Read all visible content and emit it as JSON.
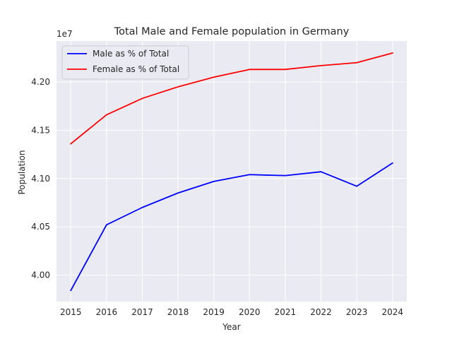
{
  "chart_data": {
    "type": "line",
    "title": "Total Male and Female population in Germany",
    "xlabel": "Year",
    "ylabel": "Population",
    "offset_label": "1e7",
    "x": [
      2015,
      2016,
      2017,
      2018,
      2019,
      2020,
      2021,
      2022,
      2023,
      2024
    ],
    "x_tick_labels": [
      "2015",
      "2016",
      "2017",
      "2018",
      "2019",
      "2020",
      "2021",
      "2022",
      "2023",
      "2024"
    ],
    "y_ticks": [
      4.0,
      4.05,
      4.1,
      4.15,
      4.2
    ],
    "y_tick_labels": [
      "4.00",
      "4.05",
      "4.10",
      "4.15",
      "4.20"
    ],
    "ylim": [
      3.9725,
      4.2425
    ],
    "xlim": [
      2014.6,
      2024.4
    ],
    "grid": true,
    "legend_position": "top-left",
    "series": [
      {
        "name": "Male as % of Total",
        "color": "#0000ff",
        "values": [
          3.984,
          4.052,
          4.07,
          4.085,
          4.097,
          4.104,
          4.103,
          4.107,
          4.092,
          4.116
        ]
      },
      {
        "name": "Female as % of Total",
        "color": "#ff0000",
        "values": [
          4.136,
          4.166,
          4.183,
          4.195,
          4.205,
          4.213,
          4.213,
          4.217,
          4.22,
          4.23
        ]
      }
    ]
  }
}
